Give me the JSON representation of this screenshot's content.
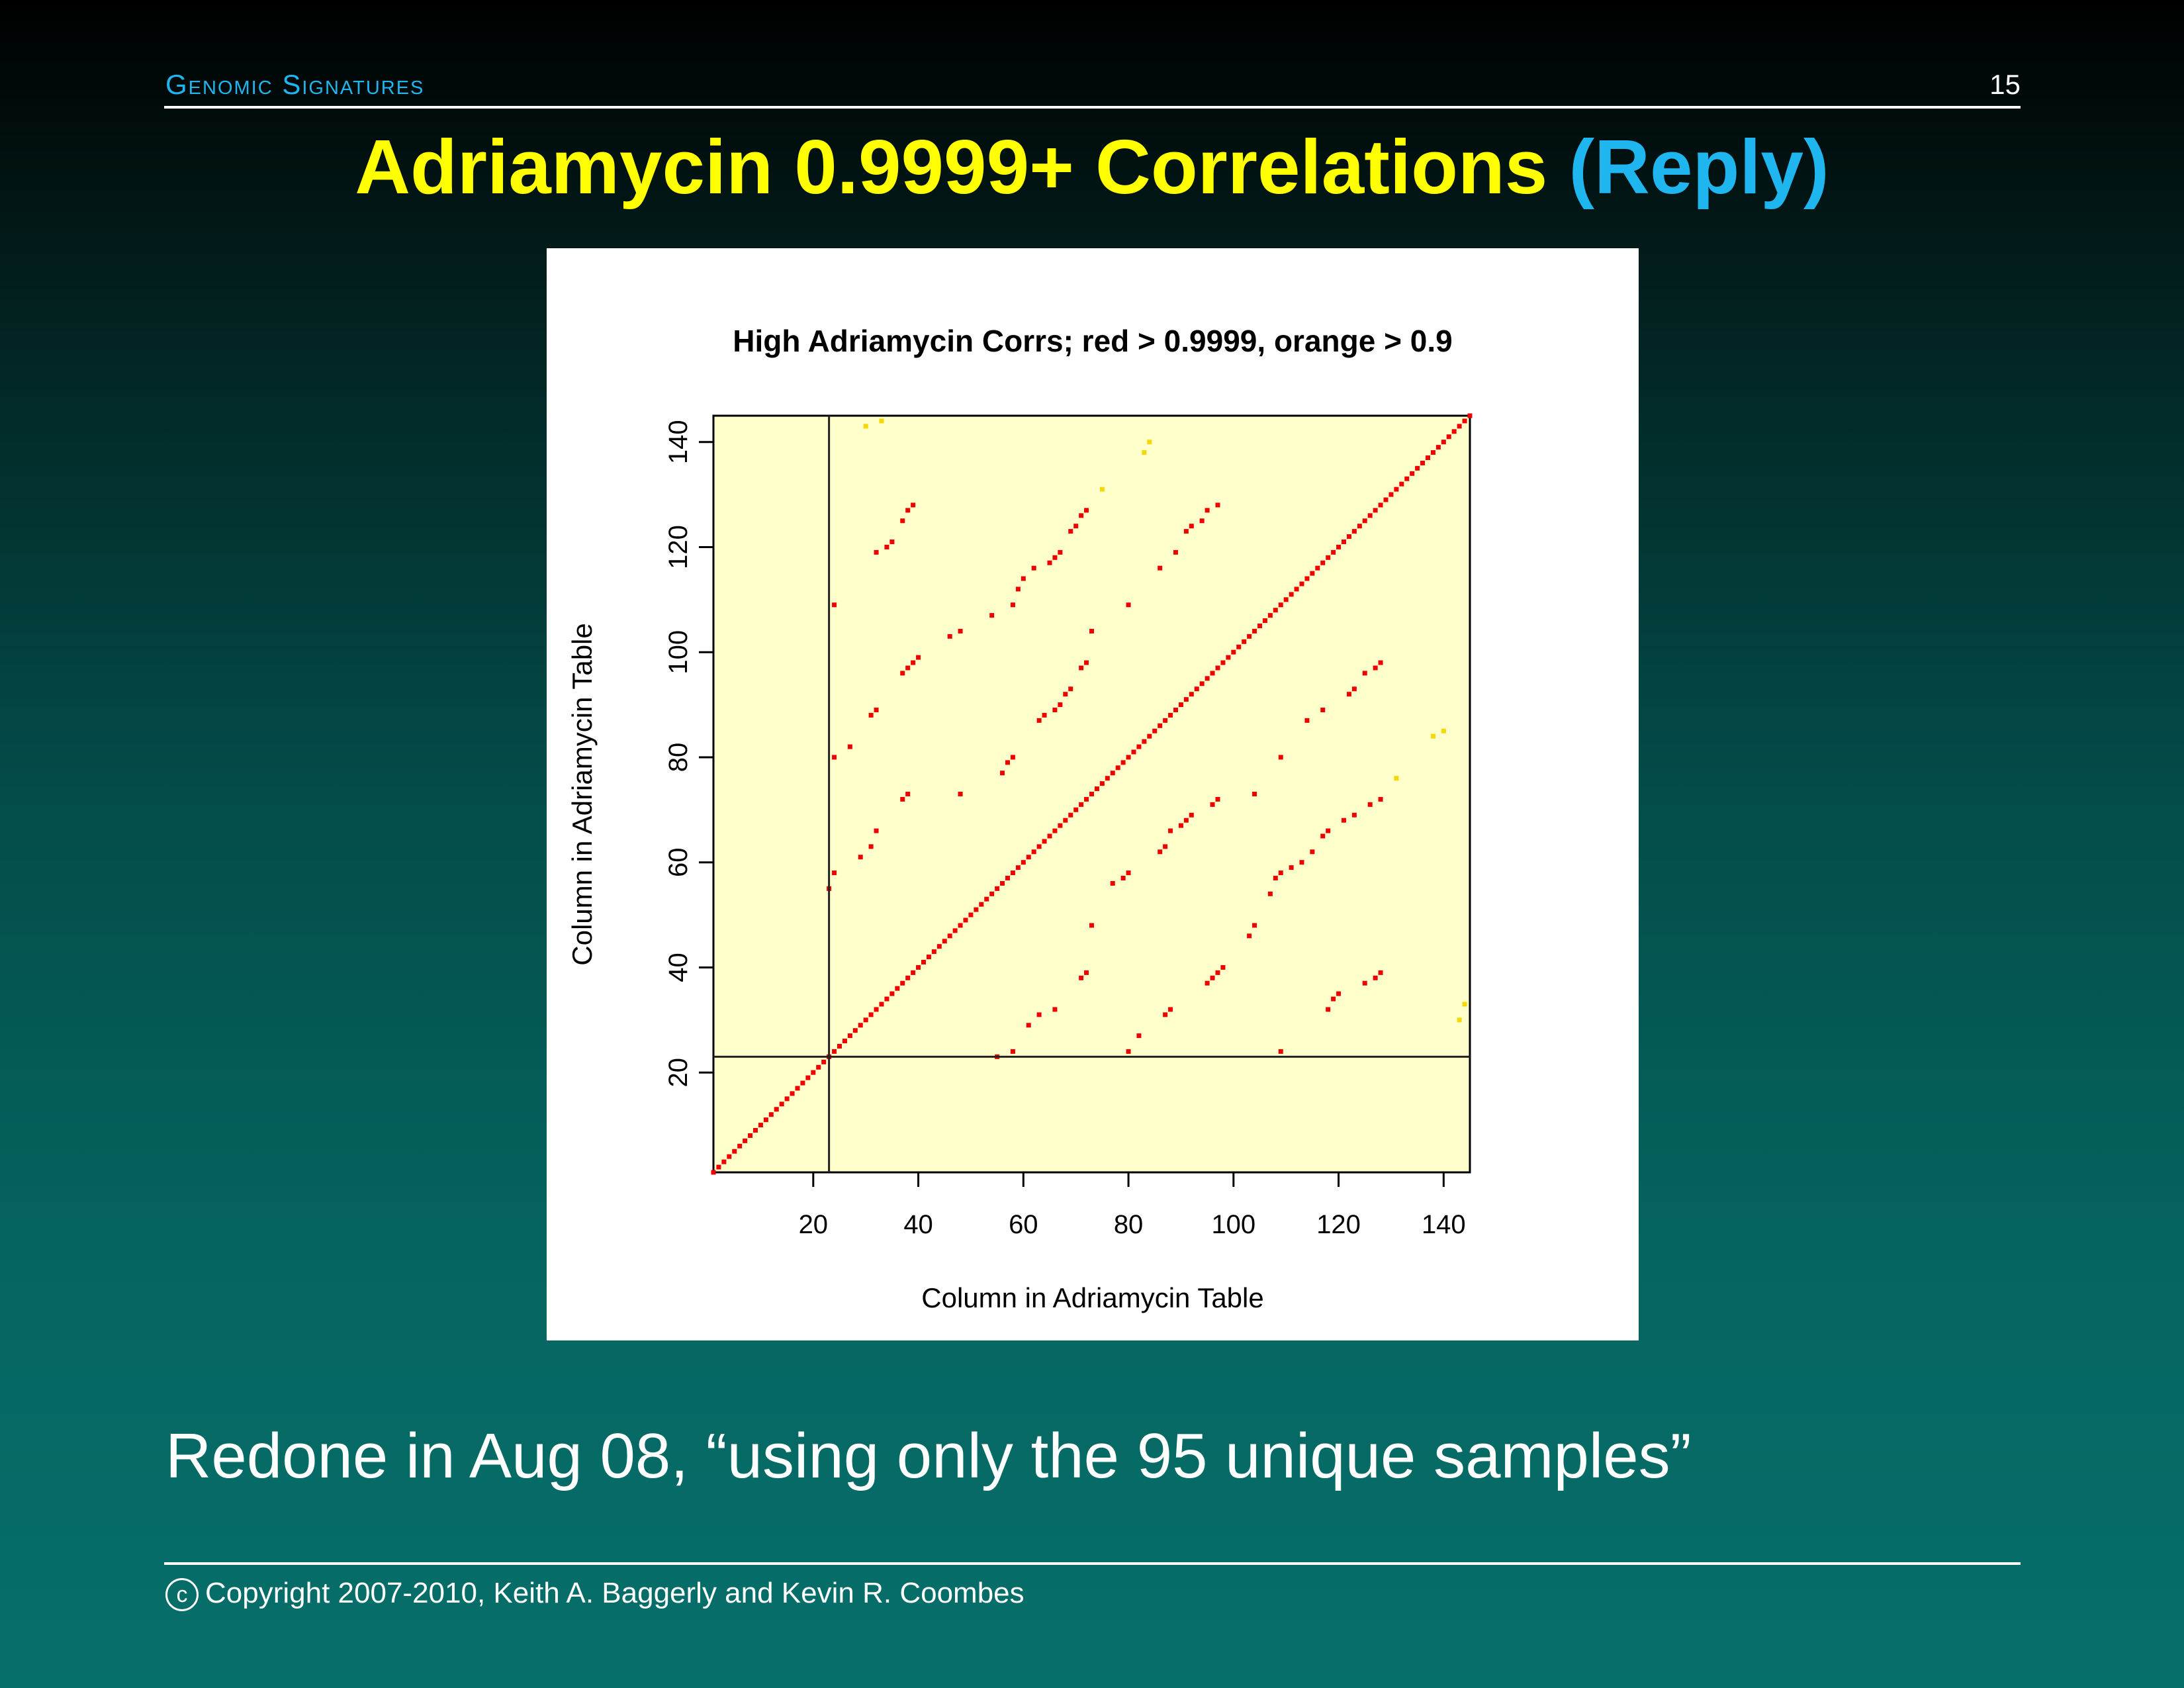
{
  "header": {
    "section_label": "Genomic Signatures",
    "page_number": "15"
  },
  "slide": {
    "title_main": "Adriamycin 0.9999+ Correlations",
    "title_reply": "(Reply)",
    "caption": "Redone in Aug 08, “using only the 95 unique samples”"
  },
  "footer": {
    "copyright_symbol": "c",
    "text": "Copyright 2007-2010, Keith A. Baggerly and Kevin R. Coombes"
  },
  "colors": {
    "title": "#ffff00",
    "accent": "#1fb6ef",
    "plot_background": "#ffffcc",
    "red_points": "#ee0000",
    "orange_points": "#f5d800"
  },
  "chart_data": {
    "type": "scatter",
    "title": "High Adriamycin Corrs; red > 0.9999, orange > 0.9",
    "xlabel": "Column in Adriamycin Table",
    "ylabel": "Column in Adriamycin Table",
    "xlim": [
      1,
      145
    ],
    "ylim": [
      1,
      145
    ],
    "x_ticks": [
      20,
      40,
      60,
      80,
      100,
      120,
      140
    ],
    "y_ticks": [
      20,
      40,
      60,
      80,
      100,
      120,
      140
    ],
    "reference_lines": {
      "vertical_x": 23,
      "horizontal_y": 23
    },
    "series": [
      {
        "name": "red > 0.9999",
        "color": "#ee0000",
        "diagonal": {
          "from": 1,
          "to": 145
        },
        "points": [
          [
            23,
            55
          ],
          [
            24,
            58
          ],
          [
            24,
            80
          ],
          [
            24,
            109
          ],
          [
            27,
            82
          ],
          [
            29,
            61
          ],
          [
            31,
            63
          ],
          [
            31,
            88
          ],
          [
            32,
            66
          ],
          [
            32,
            89
          ],
          [
            32,
            119
          ],
          [
            34,
            120
          ],
          [
            35,
            121
          ],
          [
            37,
            72
          ],
          [
            37,
            96
          ],
          [
            37,
            125
          ],
          [
            38,
            73
          ],
          [
            38,
            97
          ],
          [
            38,
            127
          ],
          [
            39,
            98
          ],
          [
            39,
            128
          ],
          [
            40,
            99
          ],
          [
            46,
            103
          ],
          [
            48,
            73
          ],
          [
            48,
            104
          ],
          [
            54,
            107
          ],
          [
            55,
            23
          ],
          [
            56,
            77
          ],
          [
            57,
            79
          ],
          [
            58,
            24
          ],
          [
            58,
            80
          ],
          [
            58,
            109
          ],
          [
            59,
            112
          ],
          [
            60,
            114
          ],
          [
            61,
            29
          ],
          [
            62,
            116
          ],
          [
            63,
            31
          ],
          [
            63,
            87
          ],
          [
            64,
            88
          ],
          [
            66,
            32
          ],
          [
            65,
            117
          ],
          [
            66,
            89
          ],
          [
            66,
            118
          ],
          [
            67,
            119
          ],
          [
            67,
            90
          ],
          [
            68,
            92
          ],
          [
            69,
            93
          ],
          [
            69,
            123
          ],
          [
            70,
            124
          ],
          [
            71,
            38
          ],
          [
            71,
            97
          ],
          [
            71,
            126
          ],
          [
            72,
            39
          ],
          [
            72,
            98
          ],
          [
            72,
            127
          ],
          [
            73,
            48
          ],
          [
            73,
            104
          ],
          [
            77,
            56
          ],
          [
            79,
            57
          ],
          [
            80,
            24
          ],
          [
            80,
            58
          ],
          [
            80,
            109
          ],
          [
            82,
            27
          ],
          [
            86,
            62
          ],
          [
            86,
            116
          ],
          [
            87,
            31
          ],
          [
            87,
            63
          ],
          [
            88,
            32
          ],
          [
            88,
            66
          ],
          [
            89,
            119
          ],
          [
            90,
            67
          ],
          [
            91,
            68
          ],
          [
            91,
            123
          ],
          [
            92,
            69
          ],
          [
            92,
            124
          ],
          [
            94,
            125
          ],
          [
            95,
            37
          ],
          [
            95,
            127
          ],
          [
            96,
            38
          ],
          [
            96,
            71
          ],
          [
            97,
            39
          ],
          [
            97,
            72
          ],
          [
            97,
            128
          ],
          [
            98,
            40
          ],
          [
            103,
            46
          ],
          [
            104,
            48
          ],
          [
            104,
            73
          ],
          [
            107,
            54
          ],
          [
            108,
            57
          ],
          [
            109,
            24
          ],
          [
            109,
            58
          ],
          [
            109,
            80
          ],
          [
            111,
            59
          ],
          [
            113,
            60
          ],
          [
            114,
            87
          ],
          [
            115,
            62
          ],
          [
            117,
            65
          ],
          [
            117,
            89
          ],
          [
            118,
            32
          ],
          [
            118,
            66
          ],
          [
            119,
            34
          ],
          [
            120,
            35
          ],
          [
            121,
            68
          ],
          [
            122,
            92
          ],
          [
            123,
            69
          ],
          [
            123,
            93
          ],
          [
            125,
            37
          ],
          [
            125,
            96
          ],
          [
            126,
            71
          ],
          [
            127,
            38
          ],
          [
            127,
            97
          ],
          [
            128,
            39
          ],
          [
            128,
            72
          ],
          [
            128,
            98
          ]
        ]
      },
      {
        "name": "orange > 0.9",
        "color": "#f5d800",
        "points": [
          [
            30,
            143
          ],
          [
            33,
            144
          ],
          [
            75,
            131
          ],
          [
            83,
            138
          ],
          [
            84,
            140
          ],
          [
            131,
            76
          ],
          [
            138,
            84
          ],
          [
            140,
            85
          ],
          [
            143,
            30
          ],
          [
            144,
            33
          ]
        ]
      }
    ]
  }
}
